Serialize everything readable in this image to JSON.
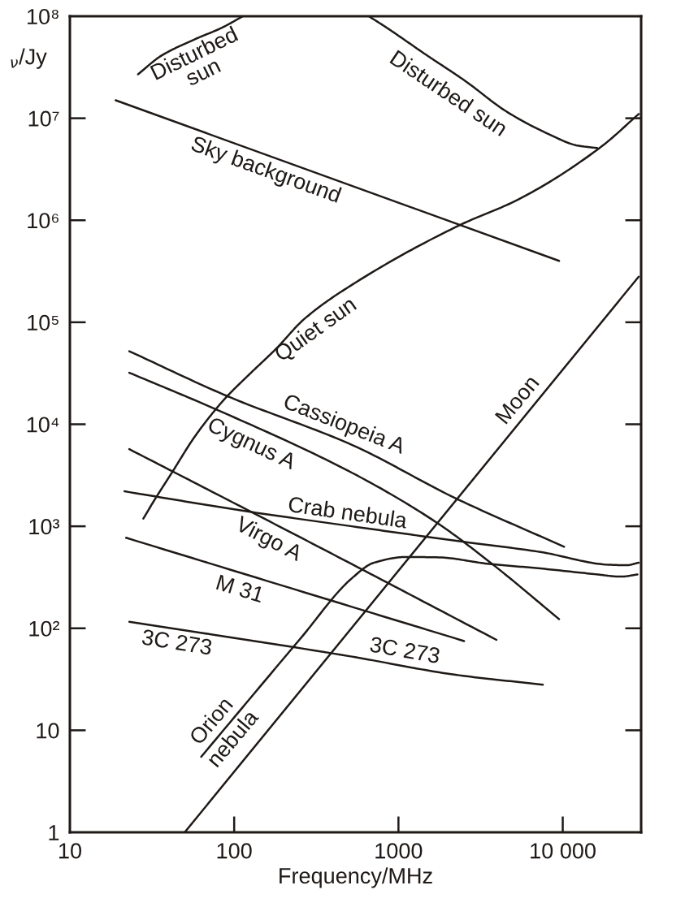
{
  "chart_data": {
    "type": "line",
    "log": "xy",
    "xlabel": "Frequency/MHz",
    "ylabel": "$_{ν}$/Jy",
    "xlim": [
      10,
      30000
    ],
    "ylim": [
      1,
      100000000
    ],
    "xticks": [
      10,
      100,
      1000,
      {
        "value": 10000,
        "label": "10 000"
      }
    ],
    "yticks": [
      1,
      10,
      {
        "value": 100,
        "label": "10²"
      },
      {
        "value": 1000,
        "label": "10³"
      },
      {
        "value": 10000,
        "label": "10⁴"
      },
      {
        "value": 100000,
        "label": "10⁵"
      },
      {
        "value": 1000000,
        "label": "10⁶"
      },
      {
        "value": 10000000,
        "label": "10⁷"
      },
      {
        "value": 100000000,
        "label": "10⁸"
      }
    ],
    "series": [
      {
        "name": "Disturbed sun",
        "color": "#1f1a17",
        "x": [
          26,
          36,
          57,
          84,
          113,
          300,
          660,
          830,
          1470,
          2570,
          4520,
          7900,
          12300,
          16200
        ],
        "values": [
          27000000,
          41000000,
          59000000,
          77000000,
          100000000,
          null,
          100000000,
          79000000,
          42000000,
          23000000,
          11700000,
          7200000,
          5400000,
          5100000
        ]
      },
      {
        "name": "Quiet sun",
        "color": "#1f1a17",
        "x": [
          28,
          33,
          42,
          57,
          78,
          90,
          123,
          180,
          266,
          548,
          2340,
          5370,
          17000,
          29000
        ],
        "values": [
          1190,
          1850,
          3400,
          7400,
          14300,
          18600,
          30600,
          55000,
          107000,
          245000,
          890000,
          1600000,
          5200000,
          11000000
        ]
      },
      {
        "name": "Sky background",
        "color": "#1f1a17",
        "x": [
          19,
          9500
        ],
        "values": [
          15000000,
          400000
        ]
      },
      {
        "name": "Cassiopeia A",
        "color": "#1f1a17",
        "x": [
          23,
          90,
          530,
          2200,
          10200
        ],
        "values": [
          52000,
          19000,
          6200,
          1900,
          630
        ]
      },
      {
        "name": "Cygnus A",
        "color": "#1f1a17",
        "x": [
          23,
          80,
          530,
          1690,
          3700,
          9500
        ],
        "values": [
          32000,
          13700,
          3300,
          1100,
          430,
          123
        ]
      },
      {
        "name": "Crab nebula",
        "color": "#1f1a17",
        "x": [
          21.5,
          120,
          520,
          2400,
          7300,
          19000,
          24500,
          29000
        ],
        "values": [
          2200,
          1400,
          1000,
          710,
          560,
          420,
          415,
          440
        ]
      },
      {
        "name": "Virgo A",
        "color": "#1f1a17",
        "x": [
          23,
          120,
          520,
          3950
        ],
        "values": [
          5700,
          1450,
          426,
          77
        ]
      },
      {
        "name": "M 31",
        "color": "#1f1a17",
        "x": [
          22,
          516,
          2510
        ],
        "values": [
          771,
          163,
          75
        ]
      },
      {
        "name": "3C 273",
        "color": "#1f1a17",
        "x": [
          23,
          512,
          2230,
          7570
        ],
        "values": [
          116,
          53,
          35,
          28
        ]
      },
      {
        "name": "Orion nebula",
        "color": "#1f1a17",
        "x": [
          63,
          251,
          519,
          706,
          1110,
          1750,
          3470,
          7300,
          15500,
          22700,
          28500
        ],
        "values": [
          5.5,
          78,
          308,
          438,
          500,
          496,
          430,
          386,
          340,
          321,
          337
        ]
      },
      {
        "name": "Moon",
        "color": "#1f1a17",
        "x": [
          50,
          29000
        ],
        "values": [
          1,
          280000
        ]
      }
    ]
  }
}
